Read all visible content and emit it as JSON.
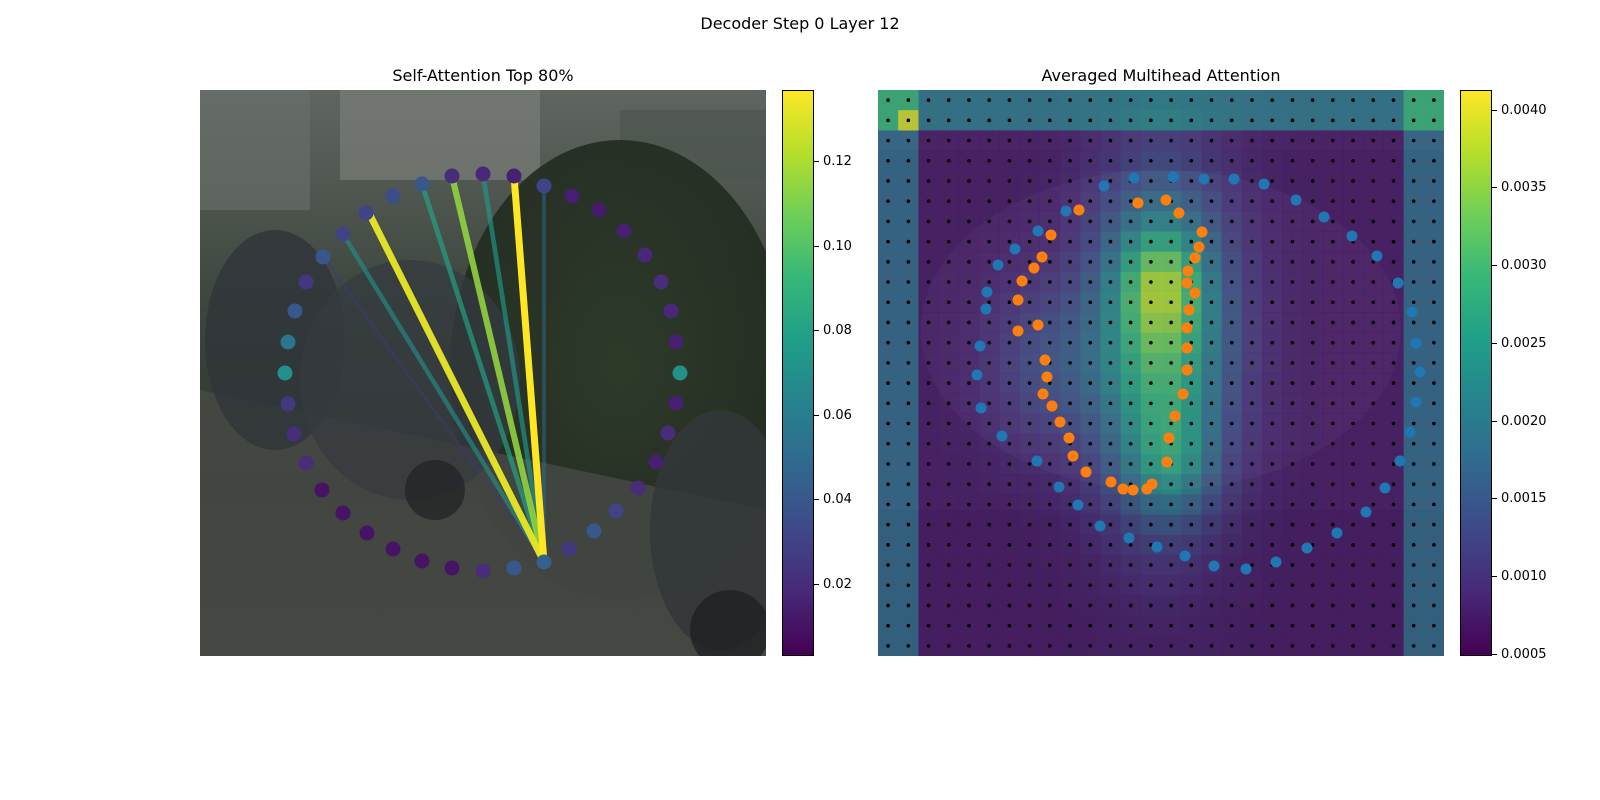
{
  "figure": {
    "title": "Decoder Step 0 Layer 12"
  },
  "colors": {
    "viridis": [
      "#440154",
      "#482878",
      "#3e4989",
      "#31688e",
      "#26828e",
      "#1f9e89",
      "#35b779",
      "#6ece58",
      "#b5de2b",
      "#fde725"
    ],
    "blue_points": "#1f77b4",
    "orange_points": "#ff7f0e",
    "grid_dots": "#000000"
  },
  "chart_data": [
    {
      "type": "scatter",
      "title": "Self-Attention Top 80%",
      "background": "street-scene-photo",
      "xlim": [
        0,
        566
      ],
      "ylim": [
        566,
        0
      ],
      "colorbar": {
        "min": 0.003,
        "max": 0.137,
        "ticks": [
          "0.02",
          "0.04",
          "0.06",
          "0.08",
          "0.10",
          "0.12"
        ],
        "tick_values": [
          0.02,
          0.04,
          0.06,
          0.08,
          0.1,
          0.12
        ]
      },
      "query_point": [
        344,
        472
      ],
      "points": [
        {
          "x": 344,
          "y": 472,
          "v": 0.045
        },
        {
          "x": 369,
          "y": 459,
          "v": 0.025
        },
        {
          "x": 394,
          "y": 441,
          "v": 0.04
        },
        {
          "x": 416,
          "y": 421,
          "v": 0.03
        },
        {
          "x": 438,
          "y": 398,
          "v": 0.02
        },
        {
          "x": 456,
          "y": 372,
          "v": 0.015
        },
        {
          "x": 468,
          "y": 343,
          "v": 0.02
        },
        {
          "x": 476,
          "y": 313,
          "v": 0.015
        },
        {
          "x": 480,
          "y": 283,
          "v": 0.07
        },
        {
          "x": 476,
          "y": 252,
          "v": 0.015
        },
        {
          "x": 471,
          "y": 221,
          "v": 0.018
        },
        {
          "x": 461,
          "y": 192,
          "v": 0.02
        },
        {
          "x": 445,
          "y": 165,
          "v": 0.018
        },
        {
          "x": 424,
          "y": 141,
          "v": 0.015
        },
        {
          "x": 399,
          "y": 120,
          "v": 0.013
        },
        {
          "x": 372,
          "y": 106,
          "v": 0.015
        },
        {
          "x": 344,
          "y": 96,
          "v": 0.03
        },
        {
          "x": 314,
          "y": 86,
          "v": 0.015
        },
        {
          "x": 283,
          "y": 84,
          "v": 0.018
        },
        {
          "x": 252,
          "y": 86,
          "v": 0.02
        },
        {
          "x": 222,
          "y": 94,
          "v": 0.04
        },
        {
          "x": 193,
          "y": 106,
          "v": 0.035
        },
        {
          "x": 166,
          "y": 123,
          "v": 0.03
        },
        {
          "x": 143,
          "y": 144,
          "v": 0.03
        },
        {
          "x": 123,
          "y": 167,
          "v": 0.04
        },
        {
          "x": 106,
          "y": 192,
          "v": 0.025
        },
        {
          "x": 95,
          "y": 221,
          "v": 0.04
        },
        {
          "x": 88,
          "y": 252,
          "v": 0.055
        },
        {
          "x": 85,
          "y": 283,
          "v": 0.07
        },
        {
          "x": 88,
          "y": 314,
          "v": 0.025
        },
        {
          "x": 94,
          "y": 344,
          "v": 0.02
        },
        {
          "x": 106,
          "y": 373,
          "v": 0.02
        },
        {
          "x": 122,
          "y": 400,
          "v": 0.01
        },
        {
          "x": 143,
          "y": 423,
          "v": 0.01
        },
        {
          "x": 167,
          "y": 443,
          "v": 0.01
        },
        {
          "x": 193,
          "y": 459,
          "v": 0.01
        },
        {
          "x": 222,
          "y": 471,
          "v": 0.01
        },
        {
          "x": 252,
          "y": 478,
          "v": 0.01
        },
        {
          "x": 283,
          "y": 481,
          "v": 0.02
        },
        {
          "x": 314,
          "y": 478,
          "v": 0.04
        }
      ],
      "attention_lines": [
        {
          "x": 314,
          "y": 86,
          "v": 0.137
        },
        {
          "x": 169,
          "y": 123,
          "v": 0.132
        },
        {
          "x": 252,
          "y": 86,
          "v": 0.115
        },
        {
          "x": 222,
          "y": 94,
          "v": 0.08
        },
        {
          "x": 283,
          "y": 84,
          "v": 0.075
        },
        {
          "x": 143,
          "y": 144,
          "v": 0.07
        },
        {
          "x": 344,
          "y": 96,
          "v": 0.05
        },
        {
          "x": 123,
          "y": 167,
          "v": 0.025
        }
      ]
    },
    {
      "type": "heatmap",
      "title": "Averaged Multihead Attention",
      "background": "street-scene-photo",
      "xlim": [
        0,
        566
      ],
      "ylim": [
        566,
        0
      ],
      "grid": {
        "rows": 28,
        "cols": 28
      },
      "colorbar": {
        "min": 0.00049,
        "max": 0.00413,
        "ticks": [
          "0.0005",
          "0.0010",
          "0.0015",
          "0.0020",
          "0.0025",
          "0.0030",
          "0.0035",
          "0.0040"
        ],
        "tick_values": [
          0.0005,
          0.001,
          0.0015,
          0.002,
          0.0025,
          0.003,
          0.0035,
          0.004
        ]
      },
      "blue_points": [
        [
          295,
          87
        ],
        [
          326,
          89
        ],
        [
          356,
          89
        ],
        [
          386,
          94
        ],
        [
          418,
          110
        ],
        [
          446,
          127
        ],
        [
          474,
          146
        ],
        [
          499,
          166
        ],
        [
          520,
          193
        ],
        [
          534,
          222
        ],
        [
          538,
          253
        ],
        [
          542,
          282
        ],
        [
          538,
          312
        ],
        [
          532,
          342
        ],
        [
          522,
          371
        ],
        [
          507,
          398
        ],
        [
          488,
          422
        ],
        [
          459,
          443
        ],
        [
          429,
          458
        ],
        [
          398,
          472
        ],
        [
          368,
          479
        ],
        [
          336,
          476
        ],
        [
          307,
          466
        ],
        [
          279,
          457
        ],
        [
          251,
          448
        ],
        [
          222,
          436
        ],
        [
          200,
          415
        ],
        [
          181,
          397
        ],
        [
          159,
          371
        ],
        [
          124,
          346
        ],
        [
          103,
          318
        ],
        [
          99,
          285
        ],
        [
          102,
          256
        ],
        [
          108,
          219
        ],
        [
          109,
          202
        ],
        [
          120,
          175
        ],
        [
          137,
          159
        ],
        [
          160,
          141
        ],
        [
          188,
          121
        ],
        [
          226,
          96
        ],
        [
          256,
          88
        ]
      ],
      "orange_points": [
        [
          260,
          113
        ],
        [
          288,
          110
        ],
        [
          301,
          123
        ],
        [
          324,
          142
        ],
        [
          321,
          157
        ],
        [
          317,
          168
        ],
        [
          310,
          181
        ],
        [
          309,
          193
        ],
        [
          317,
          203
        ],
        [
          311,
          220
        ],
        [
          309,
          238
        ],
        [
          309,
          258
        ],
        [
          309,
          280
        ],
        [
          305,
          304
        ],
        [
          297,
          326
        ],
        [
          291,
          348
        ],
        [
          289,
          372
        ],
        [
          274,
          394
        ],
        [
          269,
          399
        ],
        [
          255,
          400
        ],
        [
          245,
          399
        ],
        [
          233,
          392
        ],
        [
          208,
          382
        ],
        [
          195,
          366
        ],
        [
          191,
          348
        ],
        [
          182,
          332
        ],
        [
          174,
          316
        ],
        [
          165,
          304
        ],
        [
          169,
          287
        ],
        [
          167,
          270
        ],
        [
          160,
          235
        ],
        [
          140,
          241
        ],
        [
          140,
          210
        ],
        [
          144,
          191
        ],
        [
          156,
          178
        ],
        [
          164,
          167
        ],
        [
          173,
          145
        ],
        [
          201,
          120
        ]
      ]
    }
  ]
}
